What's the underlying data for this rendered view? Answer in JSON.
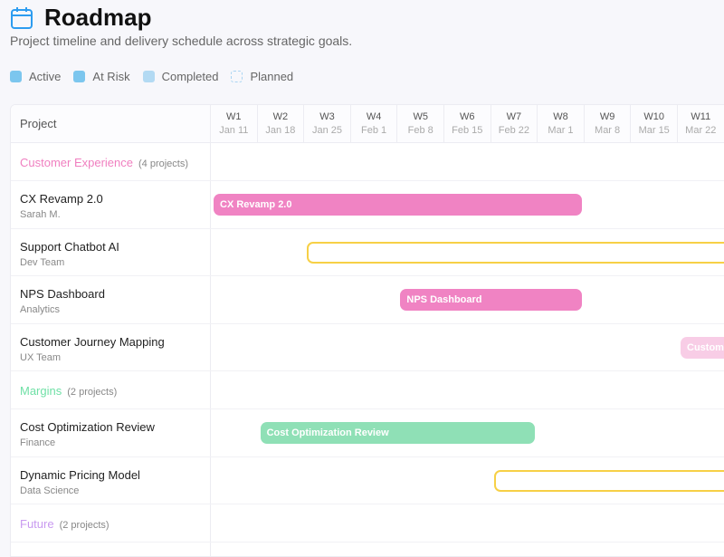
{
  "header": {
    "title": "Roadmap",
    "icon": "calendar-icon",
    "subtitle": "Project timeline and delivery schedule across strategic goals."
  },
  "legend": [
    {
      "label": "Active",
      "color": "#7cc6ee",
      "style": "solid"
    },
    {
      "label": "At Risk",
      "color": "#7cc6ee",
      "style": "solid"
    },
    {
      "label": "Completed",
      "color": "#b3daf3",
      "style": "solid"
    },
    {
      "label": "Planned",
      "color": "#a9d4f2",
      "style": "dashed"
    }
  ],
  "table": {
    "project_header": "Project",
    "weeks": [
      {
        "w": "W1",
        "d": "Jan 11"
      },
      {
        "w": "W2",
        "d": "Jan 18"
      },
      {
        "w": "W3",
        "d": "Jan 25"
      },
      {
        "w": "W4",
        "d": "Feb 1"
      },
      {
        "w": "W5",
        "d": "Feb 8"
      },
      {
        "w": "W6",
        "d": "Feb 15"
      },
      {
        "w": "W7",
        "d": "Feb 22"
      },
      {
        "w": "W8",
        "d": "Mar 1"
      },
      {
        "w": "W9",
        "d": "Mar 8"
      },
      {
        "w": "W10",
        "d": "Mar 15"
      },
      {
        "w": "W11",
        "d": "Mar 22"
      }
    ],
    "groups": [
      {
        "name": "Customer Experience",
        "count": "(4 projects)",
        "color": "#f07fc0",
        "projects": [
          {
            "name": "CX Revamp 2.0",
            "owner": "Sarah M.",
            "bar_label": "CX Revamp 2.0",
            "start_week": 1,
            "end_week": 8,
            "style": "solid",
            "color": "#f083c3",
            "opacity": 1
          },
          {
            "name": "Support Chatbot AI",
            "owner": "Dev Team",
            "bar_label": "",
            "start_week": 3,
            "end_week": 12,
            "style": "outline",
            "color": "#f7d046",
            "opacity": 1
          },
          {
            "name": "NPS Dashboard",
            "owner": "Analytics",
            "bar_label": "NPS Dashboard",
            "start_week": 5,
            "end_week": 8,
            "style": "solid",
            "color": "#f083c3",
            "opacity": 1
          },
          {
            "name": "Customer Journey Mapping",
            "owner": "UX Team",
            "bar_label": "Customer Journey Mapping",
            "start_week": 11,
            "end_week": 12,
            "style": "solid",
            "color": "#f083c3",
            "opacity": 0.4
          }
        ]
      },
      {
        "name": "Margins",
        "count": "(2 projects)",
        "color": "#6fe0a6",
        "projects": [
          {
            "name": "Cost Optimization Review",
            "owner": "Finance",
            "bar_label": "Cost Optimization Review",
            "start_week": 2,
            "end_week": 7,
            "style": "solid",
            "color": "#8fe0b6",
            "opacity": 1
          },
          {
            "name": "Dynamic Pricing Model",
            "owner": "Data Science",
            "bar_label": "",
            "start_week": 7,
            "end_week": 12,
            "style": "outline",
            "color": "#f7d046",
            "opacity": 1
          }
        ]
      },
      {
        "name": "Future",
        "count": "(2 projects)",
        "color": "#c99af0",
        "projects": []
      }
    ]
  }
}
